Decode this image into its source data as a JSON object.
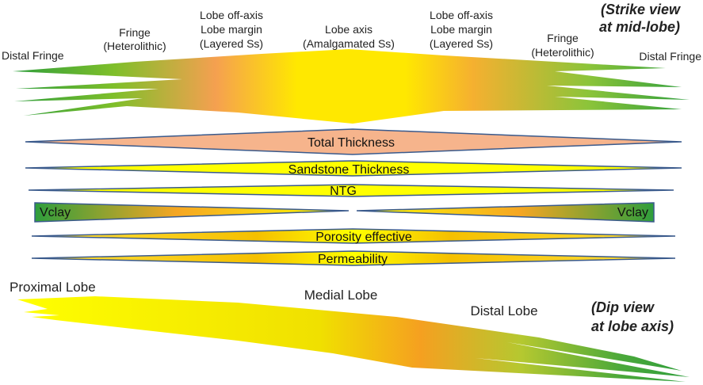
{
  "strike_view": {
    "caption": [
      "(Strike view",
      "at mid-lobe)"
    ],
    "labels": {
      "distal_fringe_left": "Distal Fringe",
      "fringe_left": [
        "Fringe",
        "(Heterolithic)"
      ],
      "lobe_off_axis_left": [
        "Lobe off-axis",
        "Lobe margin",
        "(Layered Ss)"
      ],
      "lobe_axis": [
        "Lobe axis",
        "(Amalgamated Ss)"
      ],
      "lobe_off_axis_right": [
        "Lobe off-axis",
        "Lobe margin",
        "(Layered Ss)"
      ],
      "fringe_right": [
        "Fringe",
        "(Heterolithic)"
      ],
      "distal_fringe_right": "Distal Fringe"
    }
  },
  "property_bars": {
    "total_thickness": "Total Thickness",
    "sandstone_thickness": "Sandstone Thickness",
    "ntg": "NTG",
    "vclay_left": "Vclay",
    "vclay_right": "Vclay",
    "porosity": "Porosity effective",
    "permeability": "Permeability"
  },
  "dip_view": {
    "caption": [
      "(Dip view",
      "at lobe axis)"
    ],
    "labels": {
      "proximal": "Proximal Lobe",
      "medial": "Medial Lobe",
      "distal": "Distal Lobe"
    }
  },
  "colors": {
    "sand": "#ffff00",
    "margin": "#f5a623",
    "fringe": "#2e9e3c",
    "thickness": "#f6b48c",
    "outline": "#3a5a8c"
  }
}
